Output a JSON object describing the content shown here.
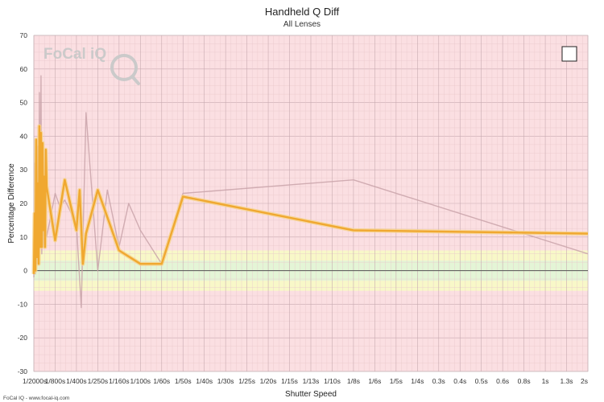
{
  "chart_data": {
    "type": "line",
    "title": "Handheld Q Diff",
    "subtitle": "All Lenses",
    "xlabel": "Shutter Speed",
    "ylabel": "Percentage Difference",
    "ylim": [
      -30,
      70
    ],
    "yticks": [
      -30,
      -20,
      -10,
      0,
      10,
      20,
      30,
      40,
      50,
      60,
      70
    ],
    "x_tick_labels": [
      "1/2000s",
      "1/800s",
      "1/400s",
      "1/250s",
      "1/160s",
      "1/100s",
      "1/60s",
      "1/50s",
      "1/40s",
      "1/30s",
      "1/25s",
      "1/20s",
      "1/15s",
      "1/13s",
      "1/10s",
      "1/8s",
      "1/6s",
      "1/5s",
      "1/4s",
      "0.3s",
      "0.4s",
      "0.5s",
      "0.6s",
      "0.8s",
      "1s",
      "1.3s",
      "2s"
    ],
    "grid": true,
    "bands": [
      {
        "from": -6,
        "to": -3,
        "color": "#f8f8c8"
      },
      {
        "from": -3,
        "to": 3,
        "color": "#e4f5d6"
      },
      {
        "from": 3,
        "to": 6,
        "color": "#f8f8c8"
      }
    ],
    "series": [
      {
        "color": "#c9a3a9",
        "x": [
          "1/2000s",
          "1/2000s",
          "1/2000s",
          "1/2000s",
          "1/2000s",
          "1/2000s",
          "1/2000s",
          "1/2000s",
          "1/2000s",
          "1/2000s",
          "1/2000s",
          "1/2000s",
          "1/2000s",
          "1/2000s",
          "1/2000s",
          "1/2000s",
          "1/2000s",
          "1/800s",
          "1/800s",
          "1/800s",
          "1/400s",
          "1/400s",
          "1/400s",
          "1/250s",
          "1/250s",
          "1/160s",
          "1/160s",
          "1/100s",
          "1/60s",
          "1/50s",
          "1/8s",
          "2s"
        ],
        "y": [
          -2,
          32,
          -1,
          14,
          2,
          37,
          4,
          53,
          8,
          58,
          5,
          38,
          7,
          28,
          8,
          14,
          10,
          23,
          19,
          21,
          14,
          -11,
          47,
          0,
          24,
          7,
          20,
          12,
          2,
          23,
          27,
          5
        ]
      },
      {
        "color": "#f0a830",
        "x": [
          "1/2000s",
          "1/2000s",
          "1/2000s",
          "1/2000s",
          "1/2000s",
          "1/2000s",
          "1/2000s",
          "1/2000s",
          "1/2000s",
          "1/2000s",
          "1/2000s",
          "1/2000s",
          "1/2000s",
          "1/2000s",
          "1/2000s",
          "1/2000s",
          "1/2000s",
          "1/800s",
          "1/800s",
          "1/400s",
          "1/400s",
          "1/400s",
          "1/400s",
          "1/250s",
          "1/160s",
          "1/100s",
          "1/60s",
          "1/50s",
          "1/8s",
          "2s"
        ],
        "y": [
          -1,
          17,
          0,
          39,
          4,
          26,
          2,
          43,
          7,
          41,
          7,
          38,
          12,
          28,
          7,
          36,
          25,
          9,
          27,
          12,
          24,
          2,
          11,
          24,
          6,
          2,
          2,
          22,
          12,
          11
        ]
      }
    ]
  },
  "logo": {
    "brand": "FoCal iQ",
    "footer": "FoCal IQ - www.focal-iq.com"
  }
}
